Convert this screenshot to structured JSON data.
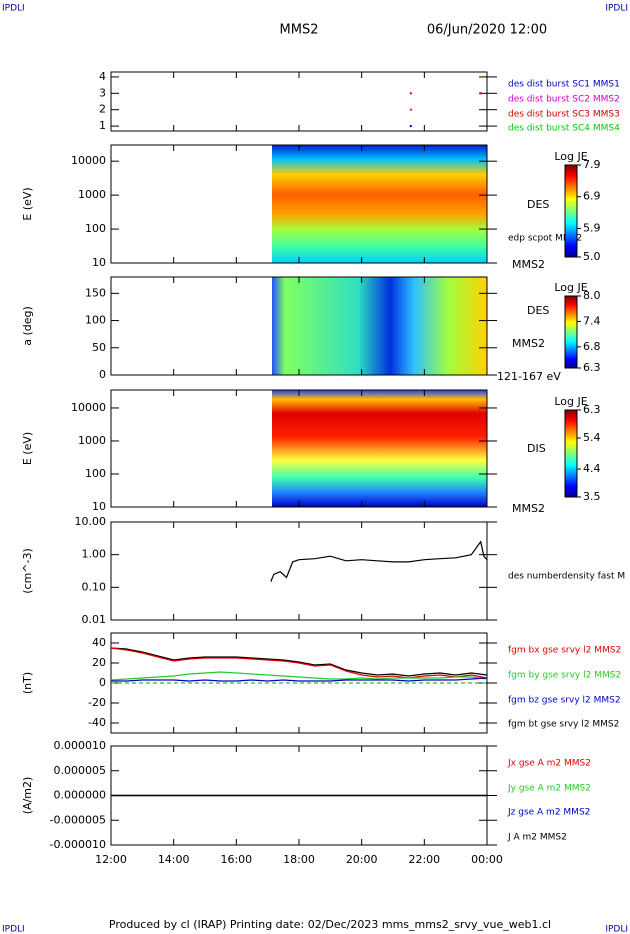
{
  "header": {
    "corner_labels": [
      "IPDLI",
      "IPDLI",
      "IPDLI",
      "IPDLI"
    ],
    "title": "MMS2",
    "date": "06/Jun/2020 12:00"
  },
  "footer": "Produced by cl (IRAP)   Printing date: 02/Dec/2023   mms_mms2_srvy_vue_web1.cl",
  "chart_data": [
    {
      "type": "scatter",
      "ylim": [
        0.7,
        4.3
      ],
      "yticks": [
        1,
        2,
        3,
        4
      ],
      "series": [
        {
          "name": "des dist burst SC1 MMS1",
          "color": "#0000cc",
          "x": [
            21.57
          ],
          "values": [
            1
          ]
        },
        {
          "name": "des dist burst SC2 MMS2",
          "color": "#cc00cc",
          "x": [
            21.57
          ],
          "values": [
            2
          ]
        },
        {
          "name": "des dist burst SC3 MMS3",
          "color": "#cc0000",
          "x": [
            21.57,
            23.8
          ],
          "values": [
            3,
            3
          ]
        },
        {
          "name": "des dist burst SC4 MMS4",
          "color": "#00cc00",
          "x": [
            23.85
          ],
          "values": [
            4
          ]
        }
      ]
    },
    {
      "type": "spectrogram",
      "y_label": "E (eV)",
      "log": true,
      "ylim": [
        10,
        30000
      ],
      "yticks": [
        10,
        100,
        1000,
        10000
      ],
      "labels": [
        "DES",
        "edp scpot MMS2",
        "MMS2"
      ],
      "colorbar": {
        "label": "Log JE",
        "clim": [
          5.0,
          7.9
        ],
        "ticks": [
          7.9,
          6.9,
          5.9,
          {
            "value": 5,
            "label": "5.0"
          }
        ]
      }
    },
    {
      "type": "spectrogram",
      "y_label": "a (deg)",
      "ylim": [
        0,
        180
      ],
      "yticks": [
        0,
        50,
        100,
        150
      ],
      "labels": [
        "DES",
        "MMS2",
        "121-167 eV"
      ],
      "colorbar": {
        "label": "Log JE",
        "clim": [
          6.3,
          8.0
        ],
        "ticks": [
          {
            "value": 8,
            "label": "8.0"
          },
          7.4,
          6.8,
          6.3
        ]
      }
    },
    {
      "type": "spectrogram",
      "y_label": "E (eV)",
      "log": true,
      "ylim": [
        10,
        35000
      ],
      "yticks": [
        10,
        100,
        1000,
        10000
      ],
      "labels": [
        "DIS",
        "MMS2"
      ],
      "colorbar": {
        "label": "Log JE",
        "clim": [
          3.5,
          6.3
        ],
        "ticks": [
          6.3,
          5.4,
          4.4,
          3.5
        ]
      }
    },
    {
      "type": "line",
      "y_label": "(cm^-3)",
      "log": true,
      "ylim": [
        0.01,
        10
      ],
      "yticks": [
        {
          "value": 0.01,
          "label": "0.01"
        },
        {
          "value": 0.1,
          "label": "0.10"
        },
        {
          "value": 1,
          "label": "1.00"
        },
        {
          "value": 10,
          "label": "10.00"
        }
      ],
      "series": [
        {
          "name": "des numberdensity fast M",
          "color": "#000000",
          "x": [
            17.1,
            17.2,
            17.4,
            17.6,
            17.8,
            18.0,
            18.5,
            19.0,
            19.5,
            20.0,
            20.5,
            21.0,
            21.5,
            22.0,
            22.5,
            23.0,
            23.5,
            23.8,
            23.9,
            24.0
          ],
          "values": [
            0.15,
            0.25,
            0.3,
            0.2,
            0.6,
            0.7,
            0.75,
            0.9,
            0.65,
            0.7,
            0.65,
            0.6,
            0.6,
            0.7,
            0.75,
            0.8,
            1.0,
            2.5,
            0.9,
            0.7
          ]
        }
      ]
    },
    {
      "type": "line",
      "y_label": "(nT)",
      "ylim": [
        -50,
        50
      ],
      "yticks": [
        -40,
        -20,
        0,
        20,
        40
      ],
      "series": [
        {
          "name": "fgm bt gse srvy l2 MMS2",
          "color": "#000000",
          "x": [
            12,
            12.5,
            13,
            13.5,
            14,
            14.5,
            15,
            15.5,
            16,
            16.5,
            17,
            17.5,
            18,
            18.5,
            19,
            19.5,
            20,
            20.5,
            21,
            21.5,
            22,
            22.5,
            23,
            23.5,
            24
          ],
          "values": [
            35,
            34,
            31,
            27,
            23,
            25,
            26,
            26,
            26,
            25,
            24,
            23,
            21,
            18,
            19,
            13,
            10,
            8,
            9,
            7,
            9,
            10,
            8,
            10,
            8
          ]
        },
        {
          "name": "fgm bx gse srvy l2 MMS2",
          "color": "#dd0000",
          "x": [
            12,
            12.5,
            13,
            13.5,
            14,
            14.5,
            15,
            15.5,
            16,
            16.5,
            17,
            17.5,
            18,
            18.5,
            19,
            19.5,
            20,
            20.5,
            21,
            21.5,
            22,
            22.5,
            23,
            23.5,
            24
          ],
          "values": [
            35,
            33,
            30,
            26,
            22,
            24,
            25,
            25,
            25,
            24,
            23,
            22,
            20,
            17,
            18,
            12,
            8,
            6,
            7,
            5,
            7,
            8,
            6,
            8,
            5
          ]
        },
        {
          "name": "fgm by gse srvy l2 MMS2",
          "color": "#22cc22",
          "x": [
            12,
            12.5,
            13,
            13.5,
            14,
            14.5,
            15,
            15.5,
            16,
            16.5,
            17,
            17.5,
            18,
            18.5,
            19,
            19.5,
            20,
            20.5,
            21,
            21.5,
            22,
            22.5,
            23,
            23.5,
            24
          ],
          "values": [
            3,
            4,
            5,
            6,
            7,
            9,
            10,
            11,
            10,
            9,
            8,
            7,
            6,
            5,
            4,
            4,
            5,
            4,
            5,
            5,
            5,
            5,
            6,
            6,
            4
          ]
        },
        {
          "name": "fgm bz gse srvy l2 MMS2",
          "color": "#0000cc",
          "x": [
            12,
            12.5,
            13,
            13.5,
            14,
            14.5,
            15,
            15.5,
            16,
            16.5,
            17,
            17.5,
            18,
            18.5,
            19,
            19.5,
            20,
            20.5,
            21,
            21.5,
            22,
            22.5,
            23,
            23.5,
            24
          ],
          "values": [
            2,
            2,
            3,
            3,
            3,
            2,
            3,
            2,
            2,
            3,
            2,
            3,
            2,
            2,
            2,
            3,
            3,
            3,
            3,
            2,
            3,
            3,
            3,
            4,
            5
          ]
        }
      ]
    },
    {
      "type": "line",
      "y_label": "(A/m2)",
      "ylim": [
        -1e-05,
        1e-05
      ],
      "yticks": [
        {
          "value": -1e-05,
          "label": "-0.000010"
        },
        {
          "value": -5e-06,
          "label": "-0.000005"
        },
        {
          "value": 0,
          "label": "0.000000"
        },
        {
          "value": 5e-06,
          "label": "0.000005"
        },
        {
          "value": 1e-05,
          "label": "0.000010"
        }
      ],
      "xlim": [
        12,
        24
      ],
      "xticks": [
        {
          "value": 12,
          "label": "12:00"
        },
        {
          "value": 14,
          "label": "14:00"
        },
        {
          "value": 16,
          "label": "16:00"
        },
        {
          "value": 18,
          "label": "18:00"
        },
        {
          "value": 20,
          "label": "20:00"
        },
        {
          "value": 22,
          "label": "22:00"
        },
        {
          "value": 24,
          "label": "00:00"
        }
      ],
      "series": [
        {
          "name": "Jx gse A m2 MMS2",
          "color": "#dd0000",
          "x": [
            12,
            24
          ],
          "values": [
            0,
            0
          ]
        },
        {
          "name": "Jy gse A m2 MMS2",
          "color": "#22cc22",
          "x": [
            12,
            24
          ],
          "values": [
            0,
            0
          ]
        },
        {
          "name": "Jz gse A m2 MMS2",
          "color": "#0000cc",
          "x": [
            12,
            24
          ],
          "values": [
            0,
            0
          ]
        },
        {
          "name": "J A m2 MMS2",
          "color": "#000000",
          "x": [
            12,
            24
          ],
          "values": [
            0,
            0
          ]
        }
      ]
    }
  ]
}
